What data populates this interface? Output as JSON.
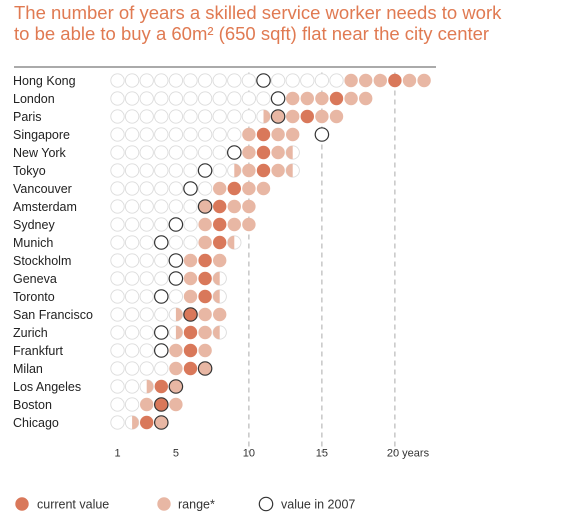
{
  "title": {
    "line1": "The number of years a skilled service worker needs to work",
    "line2": "to be able to buy a 60m² (650 sqft) flat near the city center"
  },
  "colors": {
    "current": "#d9785a",
    "range": "#e8b7a4",
    "empty_stroke": "#dcdcdc",
    "outline_2007": "#333333",
    "title": "#e07a52",
    "dashed_line": "#aaaaaa"
  },
  "chart_data": {
    "type": "dot-matrix",
    "x_ticks": [
      {
        "value": 1,
        "label": "1"
      },
      {
        "value": 5,
        "label": "5"
      },
      {
        "value": 10,
        "label": "10"
      },
      {
        "value": 15,
        "label": "15"
      },
      {
        "value": 20,
        "label": "20 years"
      }
    ],
    "dashed_at": [
      10,
      15,
      20
    ],
    "xlim": [
      1,
      22
    ],
    "categories": [
      "Hong Kong",
      "London",
      "Paris",
      "Singapore",
      "New York",
      "Tokyo",
      "Vancouver",
      "Amsterdam",
      "Sydney",
      "Munich",
      "Stockholm",
      "Geneva",
      "Toronto",
      "San Francisco",
      "Zurich",
      "Frankfurt",
      "Milan",
      "Los Angeles",
      "Boston",
      "Chicago"
    ],
    "current": [
      20,
      16,
      14,
      11,
      11,
      11,
      9,
      8,
      8,
      8,
      7,
      7,
      7,
      6,
      6,
      6,
      6,
      4,
      4,
      3
    ],
    "range_low": [
      17,
      13,
      11.5,
      10,
      10,
      9.5,
      8,
      7,
      7,
      7,
      6,
      6,
      6,
      5.5,
      5.5,
      5,
      5,
      3.5,
      3,
      2.5
    ],
    "range_high": [
      22,
      18,
      16,
      13,
      12.5,
      12.5,
      11,
      10,
      10,
      8.5,
      8,
      7.5,
      7.5,
      8,
      7.5,
      7,
      7,
      5,
      5,
      4
    ],
    "value_2007": [
      11,
      12,
      12,
      15,
      9,
      7,
      6,
      7,
      5,
      4,
      5,
      5,
      4,
      6,
      4,
      4,
      7,
      5,
      4,
      4
    ],
    "legend": [
      {
        "key": "current",
        "label": "current value"
      },
      {
        "key": "range",
        "label": "range*"
      },
      {
        "key": "y2007",
        "label": "value in 2007"
      }
    ]
  }
}
